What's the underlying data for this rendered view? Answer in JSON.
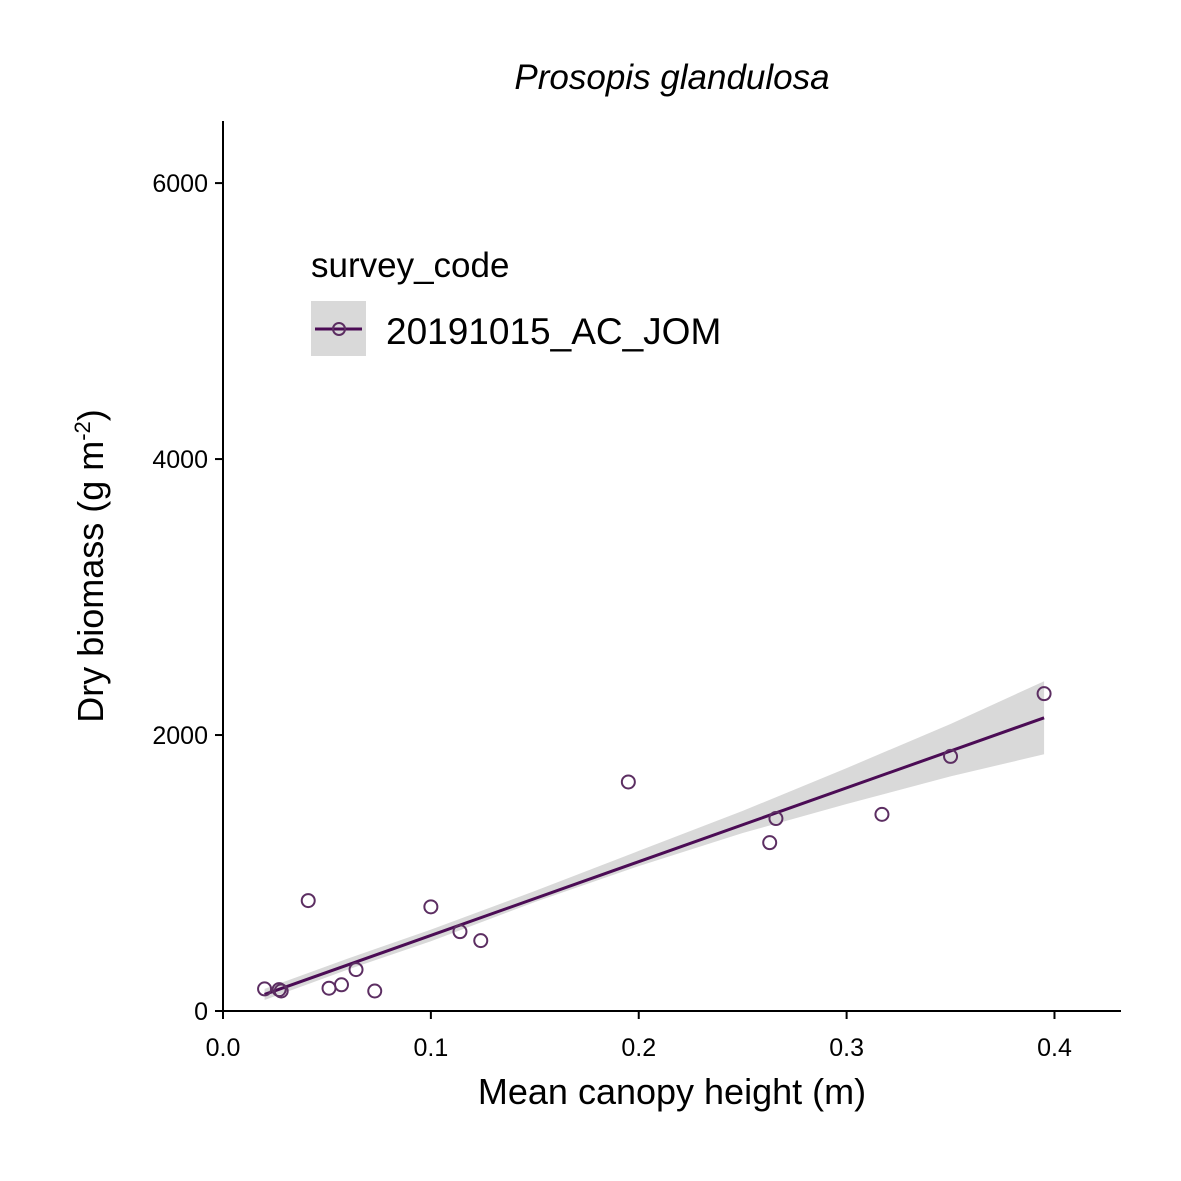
{
  "chart_data": {
    "type": "scatter",
    "title": "Prosopis glandulosa",
    "xlabel": "Mean canopy height (m)",
    "ylabel": "Dry biomass (g m",
    "ylabel_superscript": "-2",
    "ylabel_suffix": ")",
    "xlim": [
      0.0,
      0.432
    ],
    "ylim": [
      0,
      6450
    ],
    "x_ticks": [
      0.0,
      0.1,
      0.2,
      0.3,
      0.4
    ],
    "x_tick_labels": [
      "0.0",
      "0.1",
      "0.2",
      "0.3",
      "0.4"
    ],
    "y_ticks": [
      0,
      2000,
      4000,
      6000
    ],
    "y_tick_labels": [
      "0",
      "2000",
      "4000",
      "6000"
    ],
    "grid": false,
    "legend": {
      "title": "survey_code",
      "placement": "top-left",
      "entries": [
        "20191015_AC_JOM"
      ]
    },
    "colors": {
      "series": "#4B0C55",
      "point": "#5C2E62",
      "ribbon": "#D9D9D9"
    },
    "series": [
      {
        "name": "20191015_AC_JOM",
        "points": [
          {
            "x": 0.02,
            "y": 160
          },
          {
            "x": 0.027,
            "y": 155
          },
          {
            "x": 0.028,
            "y": 145
          },
          {
            "x": 0.041,
            "y": 800
          },
          {
            "x": 0.051,
            "y": 165
          },
          {
            "x": 0.057,
            "y": 190
          },
          {
            "x": 0.064,
            "y": 300
          },
          {
            "x": 0.073,
            "y": 145
          },
          {
            "x": 0.1,
            "y": 755
          },
          {
            "x": 0.114,
            "y": 575
          },
          {
            "x": 0.124,
            "y": 510
          },
          {
            "x": 0.195,
            "y": 1660
          },
          {
            "x": 0.263,
            "y": 1220
          },
          {
            "x": 0.266,
            "y": 1395
          },
          {
            "x": 0.317,
            "y": 1425
          },
          {
            "x": 0.35,
            "y": 1845
          },
          {
            "x": 0.395,
            "y": 2300
          }
        ],
        "fit": {
          "x": [
            0.02,
            0.395
          ],
          "y": [
            120,
            2125
          ]
        },
        "ribbon": {
          "x": [
            0.02,
            0.06,
            0.1,
            0.15,
            0.2,
            0.25,
            0.3,
            0.35,
            0.395
          ],
          "lower": [
            80,
            300,
            505,
            790,
            1050,
            1290,
            1500,
            1700,
            1860
          ],
          "upper": [
            160,
            380,
            590,
            870,
            1160,
            1450,
            1760,
            2080,
            2390
          ]
        }
      }
    ]
  }
}
